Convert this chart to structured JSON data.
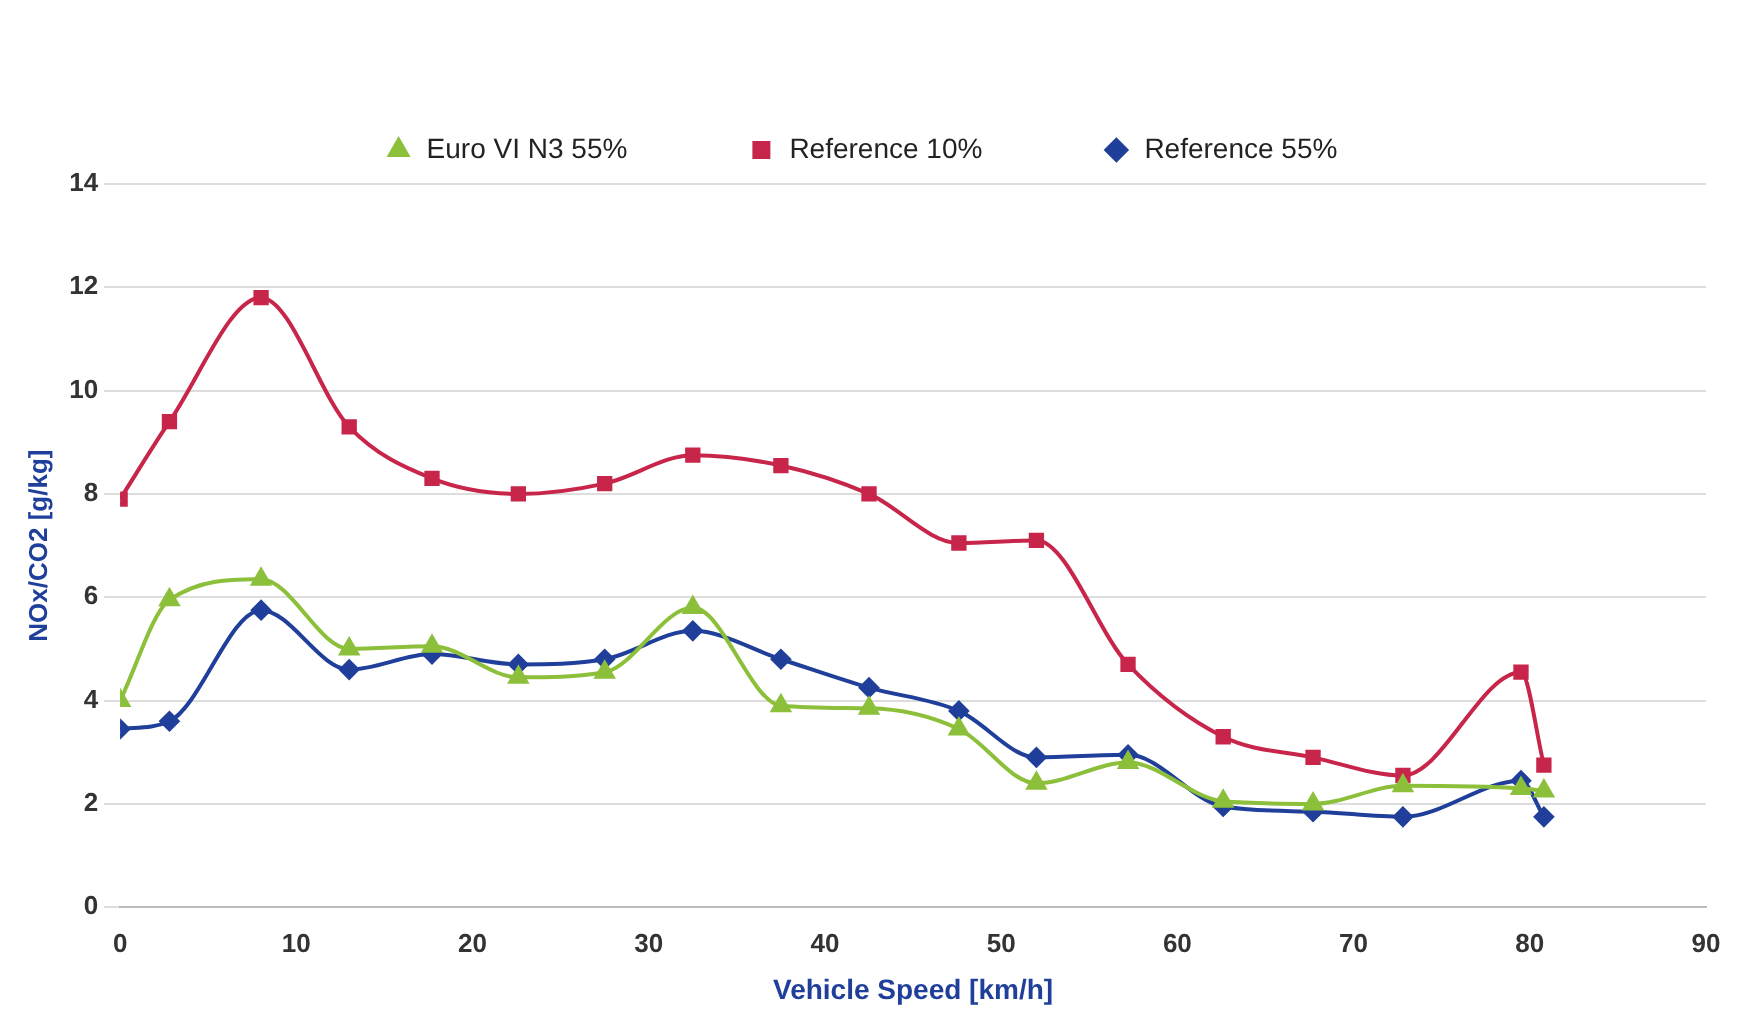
{
  "chart_data": {
    "type": "line",
    "xlabel": "Vehicle Speed [km/h]",
    "ylabel": "NOx/CO2 [g/kg]",
    "x": [
      0,
      2.8,
      8,
      13,
      17.7,
      22.6,
      27.5,
      32.5,
      37.5,
      42.5,
      47.6,
      52,
      57.2,
      62.6,
      67.7,
      72.8,
      79.5,
      80.8
    ],
    "series": [
      {
        "name": "Reference 55%",
        "color": "#1f3f9a",
        "marker": "diamond",
        "values": [
          3.45,
          3.6,
          5.75,
          4.6,
          4.9,
          4.7,
          4.8,
          5.35,
          4.8,
          4.25,
          3.8,
          2.9,
          2.95,
          1.95,
          1.85,
          1.75,
          2.45,
          1.75
        ]
      },
      {
        "name": "Reference 10%",
        "color": "#c8254a",
        "marker": "square",
        "values": [
          7.9,
          9.4,
          11.8,
          9.3,
          8.3,
          8.0,
          8.2,
          8.75,
          8.55,
          8.0,
          7.05,
          7.1,
          4.7,
          3.3,
          2.9,
          2.55,
          4.55,
          2.75
        ]
      },
      {
        "name": "Euro VI N3 55%",
        "color": "#8cbf3a",
        "marker": "triangle",
        "values": [
          4.0,
          5.95,
          6.35,
          5.0,
          5.05,
          4.45,
          4.55,
          5.8,
          3.9,
          3.85,
          3.45,
          2.4,
          2.8,
          2.05,
          2.0,
          2.35,
          2.3,
          2.25
        ]
      }
    ],
    "xlim": [
      0,
      90
    ],
    "xticks": [
      0,
      10,
      20,
      30,
      40,
      50,
      60,
      70,
      80,
      90
    ],
    "ylim": [
      0,
      14
    ],
    "yticks": [
      0,
      2,
      4,
      6,
      8,
      10,
      12,
      14
    ],
    "grid": "y",
    "legend": "top"
  }
}
